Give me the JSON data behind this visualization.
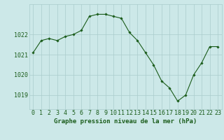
{
  "x": [
    0,
    1,
    2,
    3,
    4,
    5,
    6,
    7,
    8,
    9,
    10,
    11,
    12,
    13,
    14,
    15,
    16,
    17,
    18,
    19,
    20,
    21,
    22,
    23
  ],
  "y": [
    1021.1,
    1021.7,
    1021.8,
    1021.7,
    1021.9,
    1022.0,
    1022.2,
    1022.9,
    1023.0,
    1023.0,
    1022.9,
    1022.8,
    1022.1,
    1021.7,
    1021.1,
    1020.5,
    1019.7,
    1019.35,
    1018.7,
    1019.0,
    1020.0,
    1020.6,
    1021.4,
    1021.4
  ],
  "line_color": "#1a5c1a",
  "marker_color": "#1a5c1a",
  "bg_color": "#cce8e8",
  "grid_color": "#aacccc",
  "xlabel": "Graphe pression niveau de la mer (hPa)",
  "ylabel_ticks": [
    1019,
    1020,
    1021,
    1022
  ],
  "ylim": [
    1018.3,
    1023.5
  ],
  "xlim": [
    -0.5,
    23.5
  ],
  "tick_color": "#1a5c1a",
  "label_color": "#1a5c1a",
  "xlabel_fontsize": 6.5,
  "tick_fontsize": 6.0
}
